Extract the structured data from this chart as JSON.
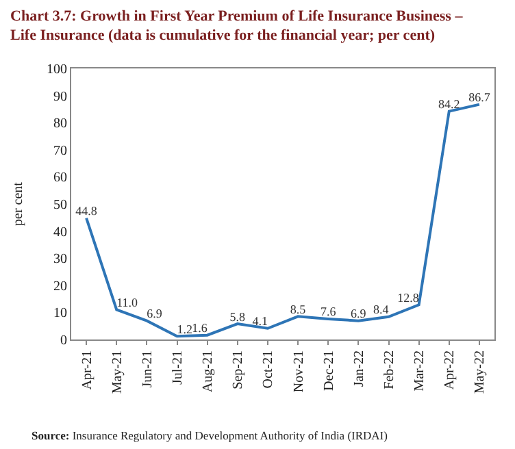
{
  "chart_data": {
    "type": "line",
    "title": "Chart 3.7: Growth in First Year Premium of Life Insurance Business – Life Insurance (data is cumulative for the financial year; per cent)",
    "ylabel": "per cent",
    "categories": [
      "Apr-21",
      "May-21",
      "Jun-21",
      "Jul-21",
      "Aug-21",
      "Sep-21",
      "Oct-21",
      "Nov-21",
      "Dec-21",
      "Jan-22",
      "Feb-22",
      "Mar-22",
      "Apr-22",
      "May-22"
    ],
    "series": [
      {
        "color": "#2e75b6",
        "values": [
          44.8,
          11.0,
          6.9,
          1.2,
          1.6,
          5.8,
          4.1,
          8.5,
          7.6,
          6.9,
          8.4,
          12.8,
          84.2,
          86.7
        ],
        "value_labels": [
          "44.8",
          "11.0",
          "6.9",
          "1.2",
          "1.6",
          "5.8",
          "4.1",
          "8.5",
          "7.6",
          "6.9",
          "8.4",
          "12.8",
          "84.2",
          "86.7"
        ]
      }
    ],
    "ylim": [
      0,
      100
    ],
    "yticks": [
      0,
      10,
      20,
      30,
      40,
      50,
      60,
      70,
      80,
      90,
      100
    ],
    "marker": "none",
    "line_style": "solid",
    "annotations": [
      "Source: Insurance Regulatory and Development Authority of India (IRDAI)"
    ]
  }
}
